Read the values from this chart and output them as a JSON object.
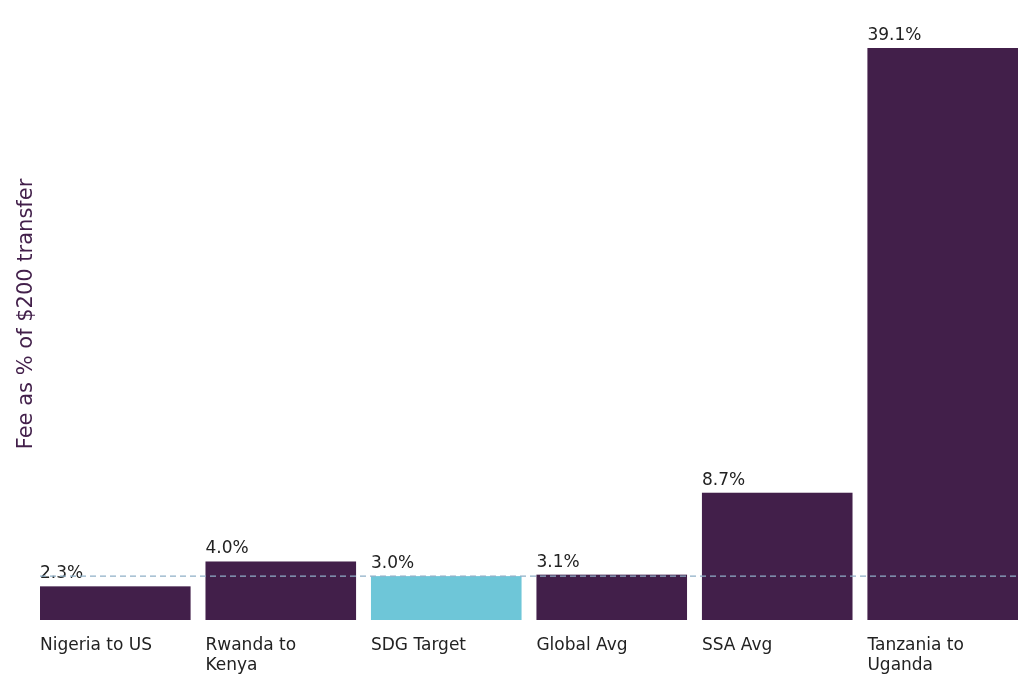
{
  "chart_data": {
    "type": "bar",
    "ylabel": "Fee as % of $200 transfer",
    "categories": [
      "Nigeria to US",
      "Rwanda to Kenya",
      "SDG Target",
      "Global Avg",
      "SSA Avg",
      "Tanzania to Uganda"
    ],
    "values": [
      2.3,
      4.0,
      3.0,
      3.1,
      8.7,
      39.1
    ],
    "colors": [
      "#421f4a",
      "#421f4a",
      "#6ec6d8",
      "#421f4a",
      "#421f4a",
      "#421f4a"
    ],
    "value_labels": [
      "2.3%",
      "4.0%",
      "3.0%",
      "3.1%",
      "8.7%",
      "39.1%"
    ],
    "ref_lines": [
      {
        "axis": "y",
        "value": 3.0,
        "color": "#8fb0c8",
        "line_style": "dashed"
      }
    ]
  }
}
